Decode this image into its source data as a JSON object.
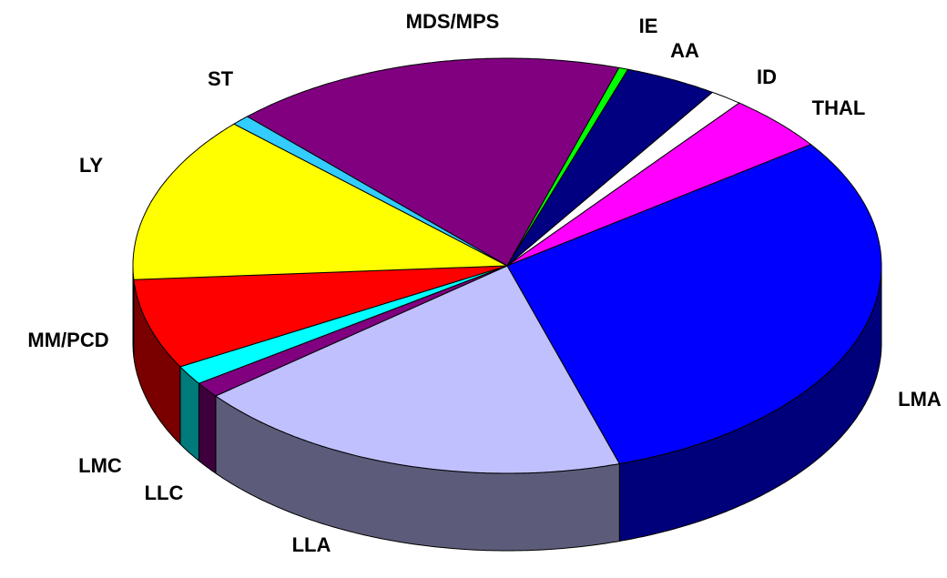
{
  "chart_data": {
    "type": "pie",
    "categories": [
      "MDS/MPS",
      "IE",
      "AA",
      "ID",
      "THAL",
      "LMA",
      "LLA",
      "LLC",
      "LMC",
      "MM/PCD",
      "LY",
      "ST"
    ],
    "values": [
      17,
      0.4,
      4,
      1.4,
      4.4,
      30,
      19,
      1.2,
      1.5,
      7,
      13,
      0.8
    ],
    "colors": [
      "#800080",
      "#00ff00",
      "#000080",
      "#ffffff",
      "#ff00ff",
      "#0000ff",
      "#c0c0ff",
      "#800080",
      "#00ffff",
      "#ff0000",
      "#ffff00",
      "#33ccff"
    ]
  }
}
